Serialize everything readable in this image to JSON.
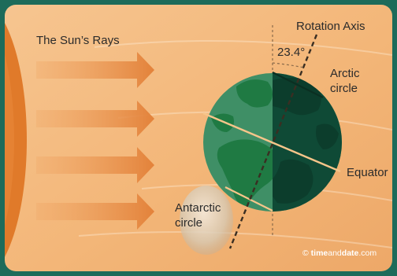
{
  "labels": {
    "suns_rays": "The Sun’s Rays",
    "rotation_axis": "Rotation Axis",
    "tilt_angle": "23.4°",
    "arctic_line1": "Arctic",
    "arctic_line2": "circle",
    "equator": "Equator",
    "antarctic_line1": "Antarctic",
    "antarctic_line2": "circle"
  },
  "credit": {
    "symbol": "© ",
    "brand_part1": "time",
    "brand_part2": "and",
    "brand_part3": "date",
    "suffix": ".com"
  },
  "colors": {
    "frame": "#1d6b5a",
    "sun": "#e07a2a",
    "arrow": "#e58a3f",
    "earth_day": "#3f8f66",
    "earth_night": "#0f4a36",
    "land_day": "#1f7a43",
    "land_night": "#0c3d2c",
    "axis_line": "#3a2e22",
    "circle_line": "#f7c58a"
  },
  "icons": {
    "sun": "sun-icon",
    "earth": "earth-icon",
    "moon": "moon-icon"
  }
}
